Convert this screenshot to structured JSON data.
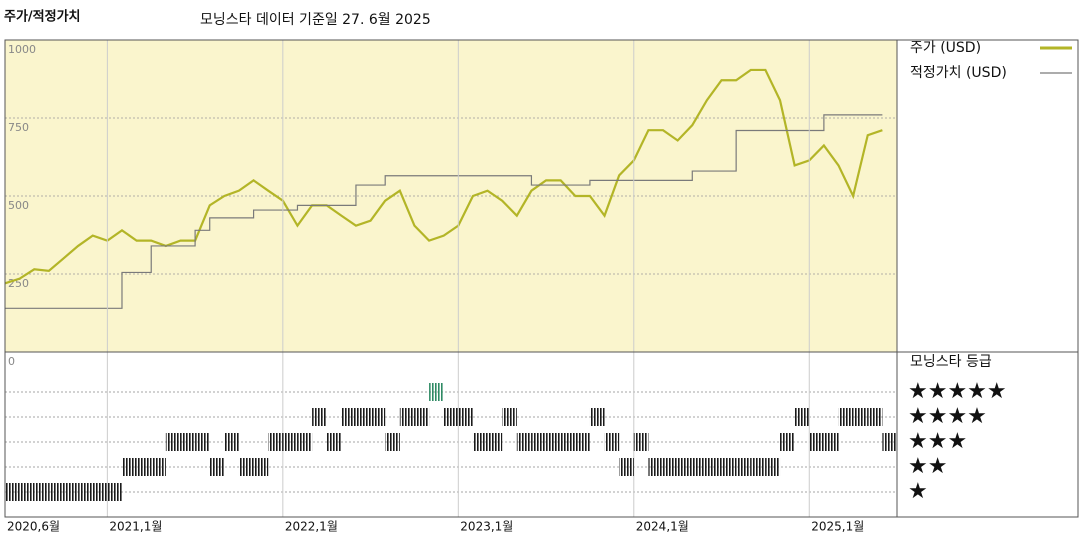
{
  "chart_data": [
    {
      "type": "line",
      "title": "주가/적정가치",
      "subtitle": "모닝스타 데이터 기준일 27. 6월 2025",
      "x": [
        "2020-06",
        "2020-07",
        "2020-08",
        "2020-09",
        "2020-10",
        "2020-11",
        "2020-12",
        "2021-01",
        "2021-02",
        "2021-03",
        "2021-04",
        "2021-05",
        "2021-06",
        "2021-07",
        "2021-08",
        "2021-09",
        "2021-10",
        "2021-11",
        "2021-12",
        "2022-01",
        "2022-02",
        "2022-03",
        "2022-04",
        "2022-05",
        "2022-06",
        "2022-07",
        "2022-08",
        "2022-09",
        "2022-10",
        "2022-11",
        "2022-12",
        "2023-01",
        "2023-02",
        "2023-03",
        "2023-04",
        "2023-05",
        "2023-06",
        "2023-07",
        "2023-08",
        "2023-09",
        "2023-10",
        "2023-11",
        "2023-12",
        "2024-01",
        "2024-02",
        "2024-03",
        "2024-04",
        "2024-05",
        "2024-06",
        "2024-07",
        "2024-08",
        "2024-09",
        "2024-10",
        "2024-11",
        "2024-12",
        "2025-01",
        "2025-02",
        "2025-03",
        "2025-04",
        "2025-05",
        "2025-06"
      ],
      "xlim": [
        "2020-06",
        "2025-07"
      ],
      "ylim": [
        0,
        1000
      ],
      "yticks": [
        0,
        250,
        500,
        750,
        1000
      ],
      "grid": true,
      "background": "#faf5cd",
      "series": [
        {
          "name": "주가 (USD)",
          "color": "#b3b527",
          "values": [
            220,
            235,
            265,
            260,
            300,
            340,
            373,
            357,
            390,
            357,
            357,
            340,
            357,
            357,
            470,
            500,
            517,
            550,
            517,
            485,
            405,
            470,
            470,
            437,
            405,
            421,
            485,
            517,
            405,
            357,
            373,
            405,
            500,
            517,
            485,
            437,
            517,
            550,
            550,
            500,
            500,
            437,
            566,
            614,
            711,
            711,
            678,
            727,
            807,
            871,
            871,
            904,
            904,
            807,
            598,
            614,
            662,
            598,
            500,
            695,
            711
          ]
        },
        {
          "name": "적정가치 (USD)",
          "color": "#7a7a7a",
          "step": "after",
          "values": [
            140,
            140,
            140,
            140,
            140,
            140,
            140,
            140,
            255,
            255,
            340,
            340,
            340,
            390,
            430,
            430,
            430,
            455,
            455,
            455,
            470,
            470,
            470,
            470,
            535,
            535,
            565,
            565,
            565,
            565,
            565,
            565,
            565,
            565,
            565,
            565,
            535,
            535,
            535,
            535,
            550,
            550,
            550,
            550,
            550,
            550,
            550,
            580,
            580,
            580,
            710,
            710,
            710,
            710,
            710,
            710,
            760,
            760,
            760,
            760,
            760
          ]
        }
      ]
    },
    {
      "type": "rating",
      "title": "모닝스타 등급",
      "x": [
        "2020-06",
        "2020-07",
        "2020-08",
        "2020-09",
        "2020-10",
        "2020-11",
        "2020-12",
        "2021-01",
        "2021-02",
        "2021-03",
        "2021-04",
        "2021-05",
        "2021-06",
        "2021-07",
        "2021-08",
        "2021-09",
        "2021-10",
        "2021-11",
        "2021-12",
        "2022-01",
        "2022-02",
        "2022-03",
        "2022-04",
        "2022-05",
        "2022-06",
        "2022-07",
        "2022-08",
        "2022-09",
        "2022-10",
        "2022-11",
        "2022-12",
        "2023-01",
        "2023-02",
        "2023-03",
        "2023-04",
        "2023-05",
        "2023-06",
        "2023-07",
        "2023-08",
        "2023-09",
        "2023-10",
        "2023-11",
        "2023-12",
        "2024-01",
        "2024-02",
        "2024-03",
        "2024-04",
        "2024-05",
        "2024-06",
        "2024-07",
        "2024-08",
        "2024-09",
        "2024-10",
        "2024-11",
        "2024-12",
        "2025-01",
        "2025-02",
        "2025-03",
        "2025-04",
        "2025-05",
        "2025-06"
      ],
      "xlim": [
        "2020-06",
        "2025-07"
      ],
      "xticks": [
        {
          "value": "2020-06",
          "label": "2020,6월"
        },
        {
          "value": "2021-01",
          "label": "2021,1월"
        },
        {
          "value": "2022-01",
          "label": "2022,1월"
        },
        {
          "value": "2023-01",
          "label": "2023,1월"
        },
        {
          "value": "2024-01",
          "label": "2024,1월"
        },
        {
          "value": "2025-01",
          "label": "2025,1월"
        }
      ],
      "values": [
        1,
        1,
        1,
        1,
        1,
        1,
        1,
        1,
        2,
        2,
        2,
        3,
        3,
        3,
        2,
        3,
        2,
        2,
        3,
        3,
        3,
        4,
        3,
        4,
        4,
        4,
        3,
        4,
        4,
        5,
        4,
        4,
        3,
        3,
        4,
        3,
        3,
        3,
        3,
        3,
        4,
        3,
        2,
        3,
        2,
        2,
        2,
        2,
        2,
        2,
        2,
        2,
        2,
        3,
        4,
        3,
        3,
        4,
        4,
        4,
        3
      ],
      "ylim": [
        0,
        6.6
      ],
      "yticks": [
        {
          "value": 1,
          "label": "★"
        },
        {
          "value": 2,
          "label": "★★"
        },
        {
          "value": 3,
          "label": "★★★"
        },
        {
          "value": 4,
          "label": "★★★★"
        },
        {
          "value": 5,
          "label": "★★★★★"
        }
      ],
      "colors": [
        "#1a1a1a",
        "#1a1a1a",
        "#1a1a1a",
        "#1a1a1a",
        "#2f8a64"
      ]
    }
  ]
}
